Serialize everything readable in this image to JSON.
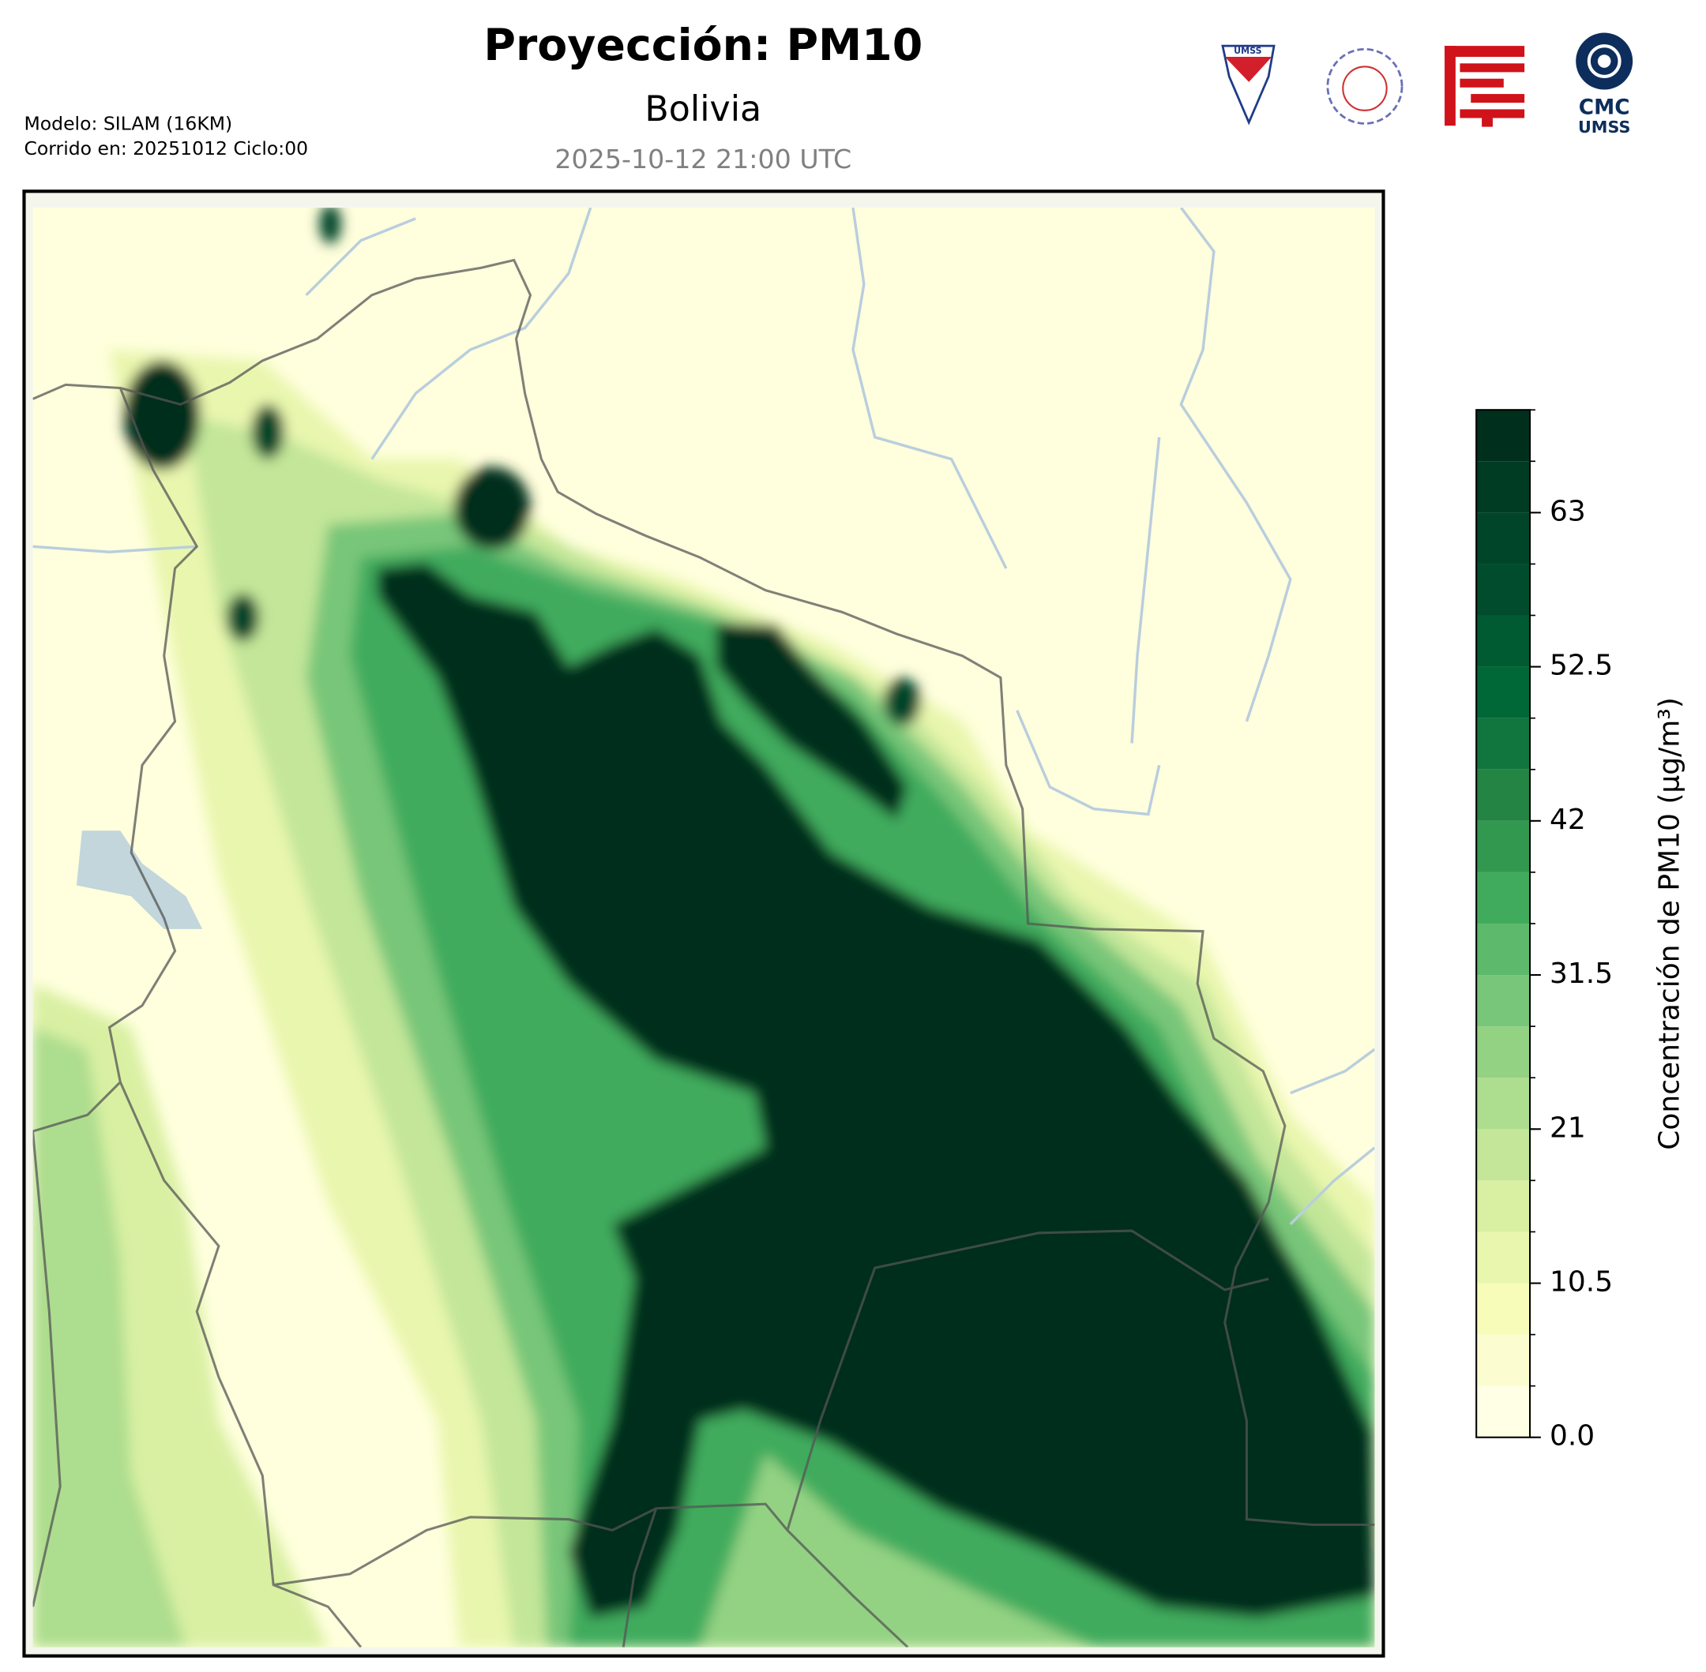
{
  "header": {
    "title": "Proyección: PM10",
    "subtitle": "Bolivia",
    "timestamp": "2025-10-12 21:00 UTC",
    "model": "Modelo: SILAM (16KM)",
    "run": "Corrido en: 20251012 Ciclo:00"
  },
  "logos": {
    "shield": "UMSS",
    "cmc": "CMC",
    "cmc_sub": "UMSS"
  },
  "chart_data": {
    "type": "contourf",
    "colorbar_label": "Concentración de PM10 (µg/m³)",
    "levels": [
      0,
      3.5,
      7,
      10.5,
      14,
      17.5,
      21,
      24.5,
      28,
      31.5,
      35,
      38.5,
      42,
      45.5,
      49,
      52.5,
      56,
      59.5,
      63,
      66.5,
      70
    ],
    "colors": [
      "#ffffe5",
      "#fbfdd0",
      "#f7fcb9",
      "#e9f6ae",
      "#d9f0a3",
      "#c3e699",
      "#addd8e",
      "#93d283",
      "#78c679",
      "#5db96b",
      "#41ab5d",
      "#329850",
      "#238443",
      "#11763d",
      "#006837",
      "#005a32",
      "#004c2c",
      "#004529",
      "#003b23",
      "#002f1e"
    ],
    "ylim": [
      0,
      70
    ],
    "yticks": [
      {
        "value": 0,
        "label": "0.0"
      },
      10.5,
      21,
      31.5,
      42,
      52.5,
      63
    ]
  }
}
